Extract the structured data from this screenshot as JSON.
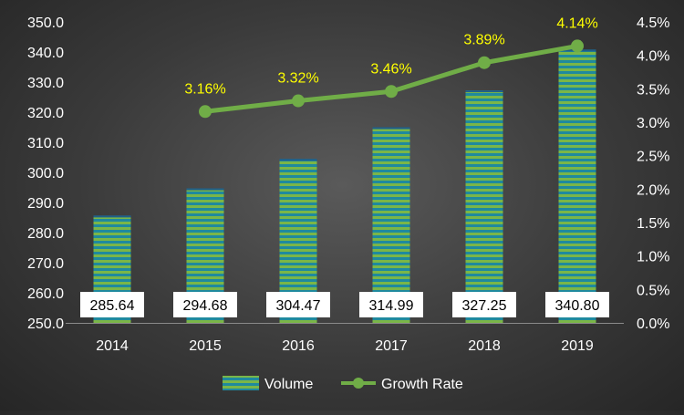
{
  "chart_data": {
    "type": "bar+line",
    "categories": [
      "2014",
      "2015",
      "2016",
      "2017",
      "2018",
      "2019"
    ],
    "series": [
      {
        "name": "Volume",
        "type": "bar",
        "axis": "left",
        "values": [
          285.64,
          294.68,
          304.47,
          314.99,
          327.25,
          340.8
        ],
        "labels": [
          "285.64",
          "294.68",
          "304.47",
          "314.99",
          "327.25",
          "340.80"
        ]
      },
      {
        "name": "Growth Rate",
        "type": "line",
        "axis": "right",
        "values": [
          null,
          3.16,
          3.32,
          3.46,
          3.89,
          4.14
        ],
        "labels": [
          "",
          "3.16%",
          "3.32%",
          "3.46%",
          "3.89%",
          "4.14%"
        ]
      }
    ],
    "y_left": {
      "min": 250,
      "max": 350,
      "ticks": [
        "250.0",
        "260.0",
        "270.0",
        "280.0",
        "290.0",
        "300.0",
        "310.0",
        "320.0",
        "330.0",
        "340.0",
        "350.0"
      ]
    },
    "y_right": {
      "min": 0,
      "max": 4.5,
      "ticks": [
        "0.0%",
        "0.5%",
        "1.0%",
        "1.5%",
        "2.0%",
        "2.5%",
        "3.0%",
        "3.5%",
        "4.0%",
        "4.5%"
      ]
    },
    "legend_position": "bottom",
    "grid": false,
    "colors": {
      "bar_stripe_a": "#1f8a9e",
      "bar_stripe_b": "#7ab648",
      "line": "#70ad47",
      "line_label": "#ffff00",
      "axis_text": "#ffffff",
      "data_label_bg": "#ffffff",
      "data_label_text": "#000000"
    }
  }
}
